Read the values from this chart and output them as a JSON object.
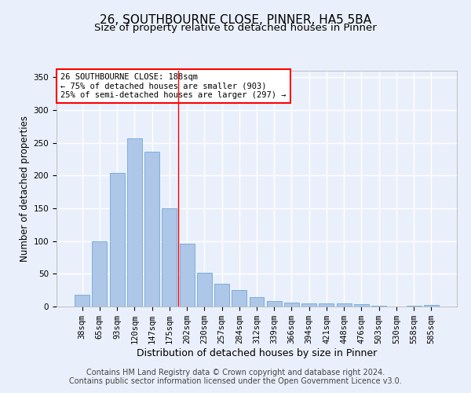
{
  "title": "26, SOUTHBOURNE CLOSE, PINNER, HA5 5BA",
  "subtitle": "Size of property relative to detached houses in Pinner",
  "xlabel": "Distribution of detached houses by size in Pinner",
  "ylabel": "Number of detached properties",
  "bar_labels": [
    "38sqm",
    "65sqm",
    "93sqm",
    "120sqm",
    "147sqm",
    "175sqm",
    "202sqm",
    "230sqm",
    "257sqm",
    "284sqm",
    "312sqm",
    "339sqm",
    "366sqm",
    "394sqm",
    "421sqm",
    "448sqm",
    "476sqm",
    "503sqm",
    "530sqm",
    "558sqm",
    "585sqm"
  ],
  "bar_values": [
    18,
    100,
    204,
    257,
    237,
    150,
    96,
    52,
    35,
    25,
    14,
    8,
    6,
    5,
    5,
    5,
    4,
    1,
    0,
    1,
    3
  ],
  "bar_color": "#aec6e8",
  "bar_edgecolor": "#5a9fd4",
  "background_color": "#eaf0fb",
  "grid_color": "#ffffff",
  "vline_x_index": 5.5,
  "vline_color": "red",
  "annotation_text": "26 SOUTHBOURNE CLOSE: 188sqm\n← 75% of detached houses are smaller (903)\n25% of semi-detached houses are larger (297) →",
  "annotation_box_color": "white",
  "annotation_box_edgecolor": "red",
  "ylim": [
    0,
    360
  ],
  "yticks": [
    0,
    50,
    100,
    150,
    200,
    250,
    300,
    350
  ],
  "footer_line1": "Contains HM Land Registry data © Crown copyright and database right 2024.",
  "footer_line2": "Contains public sector information licensed under the Open Government Licence v3.0.",
  "title_fontsize": 11,
  "subtitle_fontsize": 9.5,
  "xlabel_fontsize": 9,
  "ylabel_fontsize": 8.5,
  "tick_fontsize": 7.5,
  "footer_fontsize": 7,
  "annotation_fontsize": 7.5
}
